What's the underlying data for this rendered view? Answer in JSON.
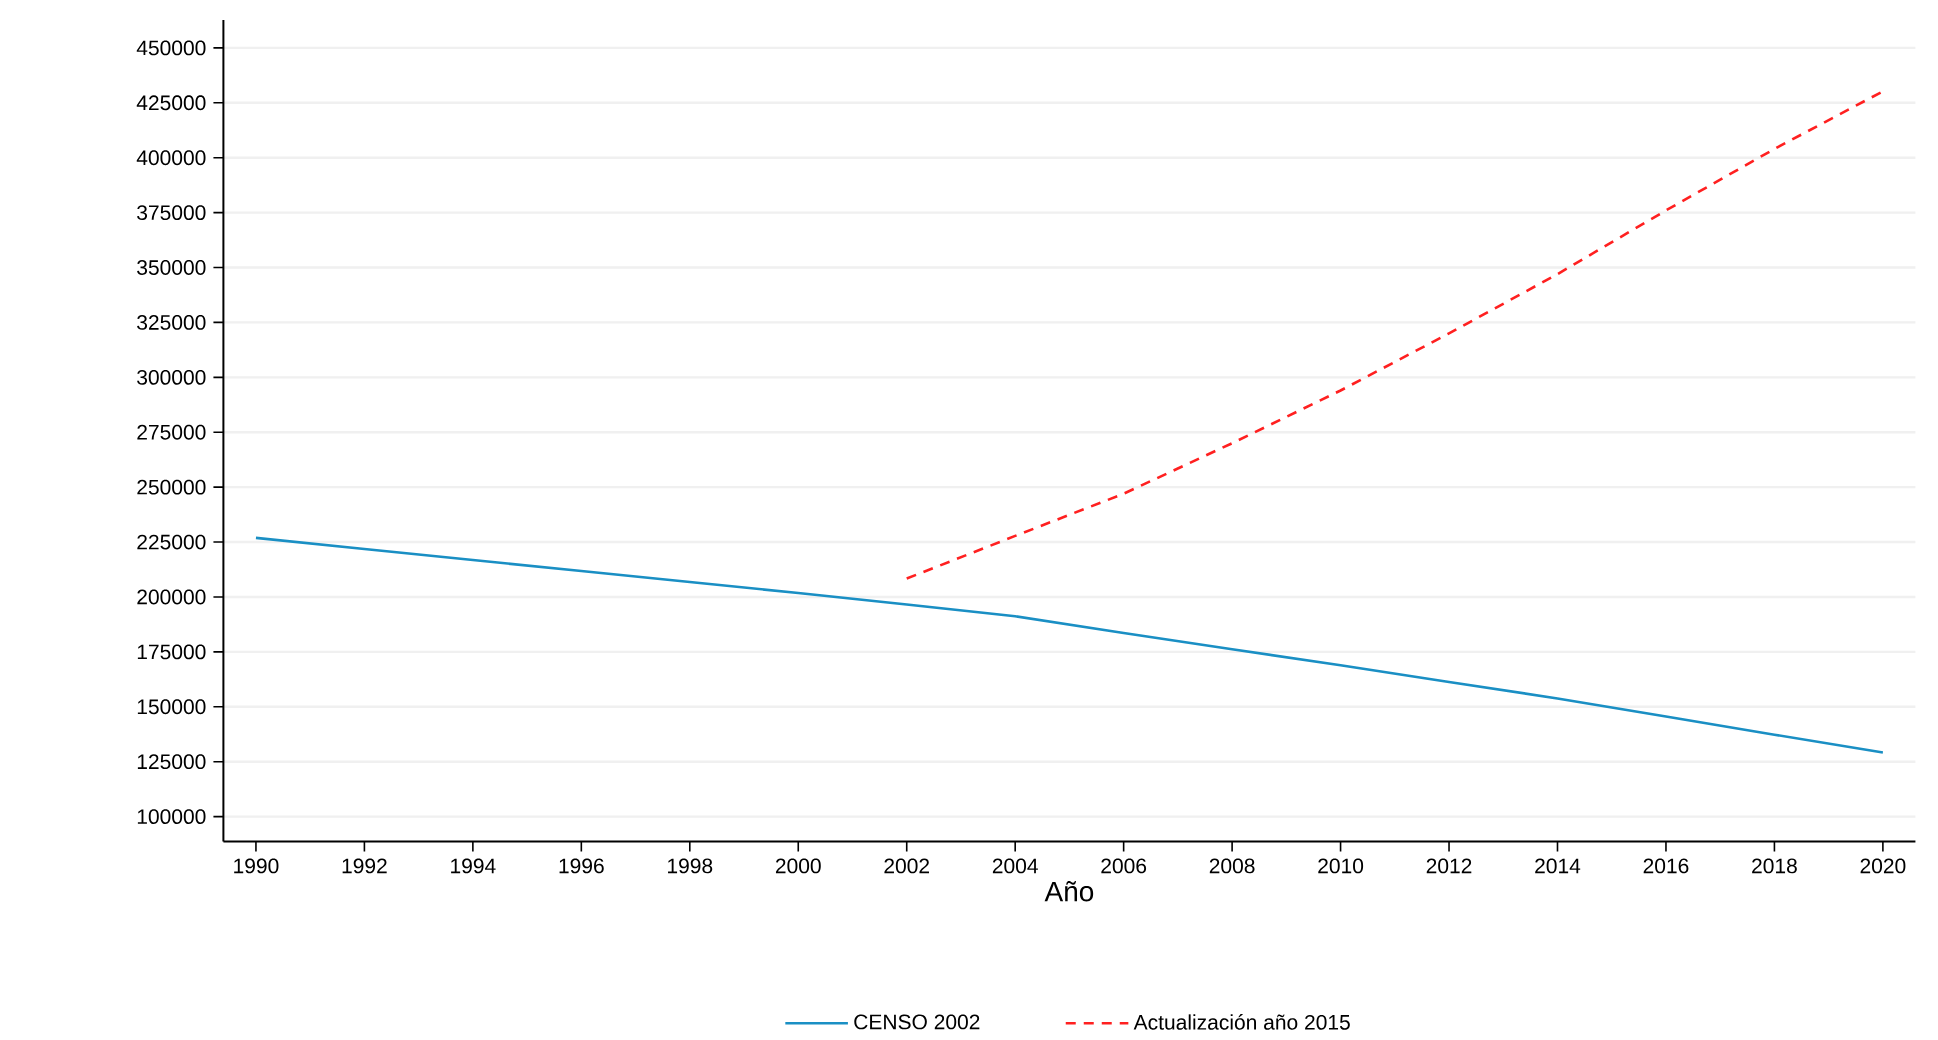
{
  "chart_data": {
    "type": "line",
    "xlabel": "Año",
    "x": [
      1990,
      1992,
      1994,
      1996,
      1998,
      2000,
      2002,
      2004,
      2006,
      2008,
      2010,
      2012,
      2014,
      2016,
      2018,
      2020
    ],
    "series": [
      {
        "name": "CENSO 2002",
        "color": "#1a8fc4",
        "line_style": "solid",
        "values": [
          226900,
          221800,
          216800,
          211800,
          206800,
          201800,
          196600,
          191200,
          183600,
          176200,
          168900,
          161300,
          153800,
          145600,
          137300,
          129200
        ]
      },
      {
        "name": "Actualización año 2015",
        "color": "#ff2020",
        "line_style": "dashed",
        "values": [
          null,
          null,
          null,
          null,
          null,
          null,
          208400,
          227800,
          247000,
          270000,
          294000,
          320000,
          347000,
          376000,
          404000,
          430200
        ]
      }
    ],
    "xlim": [
      1989.4,
      2020.6
    ],
    "ylim": [
      88700,
      462700
    ],
    "xticks": [
      1990,
      1992,
      1994,
      1996,
      1998,
      2000,
      2002,
      2004,
      2006,
      2008,
      2010,
      2012,
      2014,
      2016,
      2018,
      2020
    ],
    "yticks": [
      100000,
      125000,
      150000,
      175000,
      200000,
      225000,
      250000,
      275000,
      300000,
      325000,
      350000,
      375000,
      400000,
      425000,
      450000
    ],
    "grid": "y",
    "legend": "bottom"
  }
}
